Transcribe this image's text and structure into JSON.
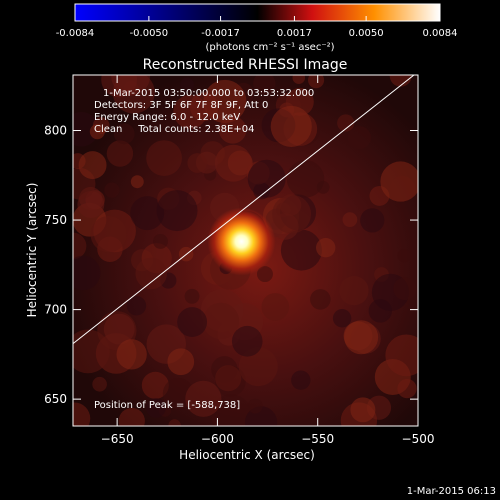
{
  "chart_data": {
    "type": "heatmap",
    "title": "Reconstructed RHESSI Image",
    "xlabel": "Heliocentric X (arcsec)",
    "ylabel": "Heliocentric Y (arcsec)",
    "xlim": [
      -672,
      -500
    ],
    "ylim": [
      635,
      831
    ],
    "xticks": [
      -650,
      -600,
      -550,
      -500
    ],
    "yticks": [
      650,
      700,
      750,
      800
    ],
    "colorbar": {
      "unit_label": "(photons cm⁻² s⁻¹ asec⁻²)",
      "range": [
        -0.0084,
        0.0084
      ],
      "ticks": [
        "-0.0084",
        "-0.0050",
        "-0.0017",
        "0.0017",
        "0.0050",
        "0.0084"
      ],
      "colors": [
        "#0000ff",
        "#000000",
        "#e01010",
        "#ffa000",
        "#ffffff"
      ]
    },
    "peak": {
      "x": -588,
      "y": 738
    },
    "limb_line": [
      [
        -672,
        681
      ],
      [
        -502,
        831
      ]
    ],
    "annotations": {
      "time_range": "1-Mar-2015 03:50:00.000 to 03:53:32.000",
      "detectors": "Detectors: 3F 5F 6F 7F 8F 9F, Att 0",
      "energy": "Energy Range: 6.0 - 12.0 keV",
      "clean": "Clean     Total counts: 2.38E+04",
      "peak_text": "Position of Peak = [-588,738]"
    }
  },
  "footer_date": "1-Mar-2015 06:13"
}
